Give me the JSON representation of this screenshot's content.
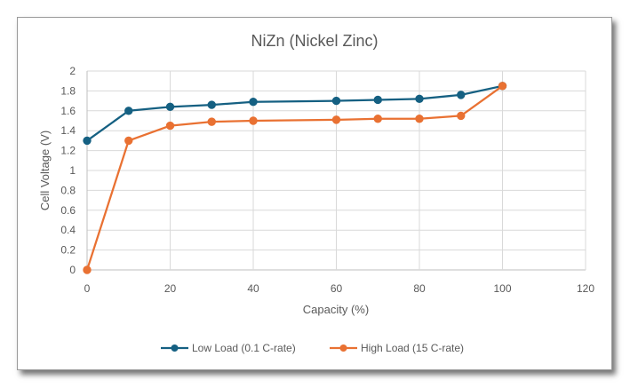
{
  "chart_data": {
    "type": "line",
    "title": "NiZn (Nickel Zinc)",
    "xlabel": "Capacity (%)",
    "ylabel": "Cell Voltage (V)",
    "xlim": [
      0,
      120
    ],
    "ylim": [
      0,
      2
    ],
    "xticks": [
      "0",
      "20",
      "40",
      "60",
      "80",
      "100",
      "120"
    ],
    "yticks": [
      "0",
      "0.2",
      "0.4",
      "0.6",
      "0.8",
      "1",
      "1.2",
      "1.4",
      "1.6",
      "1.8",
      "2"
    ],
    "grid": true,
    "legend_position": "bottom",
    "x": [
      0,
      10,
      20,
      30,
      40,
      60,
      70,
      80,
      90,
      100
    ],
    "series": [
      {
        "name": "Low Load (0.1 C-rate)",
        "color": "#156082",
        "x": [
          0,
          10,
          20,
          30,
          40,
          60,
          70,
          80,
          90,
          100
        ],
        "values": [
          1.3,
          1.6,
          1.64,
          1.66,
          1.69,
          1.7,
          1.71,
          1.72,
          1.76,
          1.85
        ]
      },
      {
        "name": "High Load (15 C-rate)",
        "color": "#E97132",
        "x": [
          0,
          10,
          20,
          30,
          40,
          60,
          70,
          80,
          90,
          100
        ],
        "values": [
          0,
          1.3,
          1.45,
          1.49,
          1.5,
          1.51,
          1.52,
          1.52,
          1.55,
          1.85
        ]
      }
    ]
  }
}
